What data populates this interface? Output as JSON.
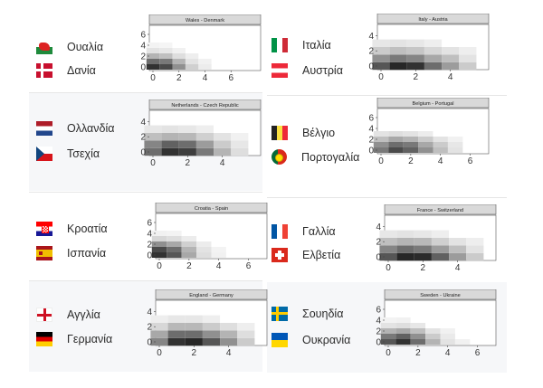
{
  "cards": [
    {
      "id": "wales-denmark",
      "home": {
        "name": "Ουαλία",
        "flag": "wales"
      },
      "away": {
        "name": "Δανία",
        "flag": "denmark"
      }
    },
    {
      "id": "italy-austria",
      "home": {
        "name": "Ιταλία",
        "flag": "italy"
      },
      "away": {
        "name": "Αυστρία",
        "flag": "austria"
      }
    },
    {
      "id": "netherlands-czech",
      "home": {
        "name": "Ολλανδία",
        "flag": "netherlands"
      },
      "away": {
        "name": "Τσεχία",
        "flag": "czech"
      }
    },
    {
      "id": "belgium-portugal",
      "home": {
        "name": "Βέλγιο",
        "flag": "belgium"
      },
      "away": {
        "name": "Πορτογαλία",
        "flag": "portugal"
      }
    },
    {
      "id": "croatia-spain",
      "home": {
        "name": "Κροατία",
        "flag": "croatia"
      },
      "away": {
        "name": "Ισπανία",
        "flag": "spain"
      }
    },
    {
      "id": "france-switzerland",
      "home": {
        "name": "Γαλλία",
        "flag": "france"
      },
      "away": {
        "name": "Ελβετία",
        "flag": "switzerland"
      }
    },
    {
      "id": "england-germany",
      "home": {
        "name": "Αγγλία",
        "flag": "england"
      },
      "away": {
        "name": "Γερμανία",
        "flag": "germany"
      }
    },
    {
      "id": "sweden-ukraine",
      "home": {
        "name": "Σουηδία",
        "flag": "sweden"
      },
      "away": {
        "name": "Ουκρανία",
        "flag": "ukraine"
      }
    }
  ],
  "chart_data": [
    {
      "type": "heatmap",
      "title": "Wales - Denmark",
      "xticks": [
        0,
        2,
        4,
        6
      ],
      "yticks": [
        0,
        2,
        4,
        6
      ],
      "xlim": [
        0,
        8
      ],
      "ylim": [
        0,
        7
      ],
      "cells": [
        [
          0.85,
          0.75,
          0.45,
          0.18,
          0.06
        ],
        [
          0.6,
          0.55,
          0.3,
          0.1,
          0.04
        ],
        [
          0.3,
          0.25,
          0.12,
          0.05
        ],
        [
          0.1,
          0.08,
          0.04
        ],
        [
          0.03,
          0.02
        ]
      ]
    },
    {
      "type": "heatmap",
      "title": "Italy - Austria",
      "xticks": [
        0,
        2,
        4
      ],
      "yticks": [
        0,
        2,
        4
      ],
      "xlim": [
        0,
        6
      ],
      "ylim": [
        0,
        5
      ],
      "cells": [
        [
          0.7,
          0.9,
          0.85,
          0.6,
          0.4,
          0.2
        ],
        [
          0.45,
          0.55,
          0.5,
          0.35,
          0.25,
          0.1
        ],
        [
          0.2,
          0.25,
          0.22,
          0.15,
          0.1,
          0.05
        ],
        [
          0.08,
          0.1,
          0.08,
          0.05
        ]
      ]
    },
    {
      "type": "heatmap",
      "title": "Netherlands - Czech Republic",
      "xticks": [
        0,
        2,
        4
      ],
      "yticks": [
        0,
        2,
        4
      ],
      "xlim": [
        0,
        6
      ],
      "ylim": [
        0,
        5
      ],
      "cells": [
        [
          0.6,
          0.85,
          0.8,
          0.55,
          0.3,
          0.12
        ],
        [
          0.5,
          0.65,
          0.6,
          0.4,
          0.2,
          0.08
        ],
        [
          0.25,
          0.3,
          0.28,
          0.18,
          0.1,
          0.04
        ],
        [
          0.08,
          0.1,
          0.08,
          0.05
        ]
      ]
    },
    {
      "type": "heatmap",
      "title": "Belgium - Portugal",
      "xticks": [
        0,
        2,
        4,
        6
      ],
      "yticks": [
        0,
        2,
        4,
        6
      ],
      "xlim": [
        0,
        7
      ],
      "ylim": [
        0,
        7
      ],
      "cells": [
        [
          0.55,
          0.75,
          0.65,
          0.45,
          0.25,
          0.1
        ],
        [
          0.45,
          0.6,
          0.55,
          0.35,
          0.2,
          0.08
        ],
        [
          0.25,
          0.35,
          0.3,
          0.2,
          0.1,
          0.04
        ],
        [
          0.1,
          0.12,
          0.1,
          0.06
        ]
      ]
    },
    {
      "type": "heatmap",
      "title": "Croatia - Spain",
      "xticks": [
        0,
        2,
        4,
        6
      ],
      "yticks": [
        0,
        2,
        4,
        6
      ],
      "xlim": [
        0,
        7
      ],
      "ylim": [
        0,
        7
      ],
      "cells": [
        [
          0.85,
          0.7,
          0.35,
          0.12,
          0.04
        ],
        [
          0.75,
          0.6,
          0.3,
          0.1,
          0.03
        ],
        [
          0.45,
          0.35,
          0.18,
          0.06
        ],
        [
          0.15,
          0.12,
          0.06
        ],
        [
          0.04,
          0.03
        ]
      ]
    },
    {
      "type": "heatmap",
      "title": "France - Switzerland",
      "xticks": [
        0,
        2,
        4
      ],
      "yticks": [
        0,
        2,
        4
      ],
      "xlim": [
        0,
        6
      ],
      "ylim": [
        0,
        5
      ],
      "cells": [
        [
          0.7,
          0.9,
          0.88,
          0.65,
          0.4,
          0.2
        ],
        [
          0.5,
          0.6,
          0.55,
          0.4,
          0.25,
          0.1
        ],
        [
          0.25,
          0.3,
          0.28,
          0.18,
          0.1,
          0.05
        ],
        [
          0.08,
          0.1,
          0.08,
          0.05
        ]
      ]
    },
    {
      "type": "heatmap",
      "title": "England - Germany",
      "xticks": [
        0,
        2,
        4
      ],
      "yticks": [
        0,
        2,
        4
      ],
      "xlim": [
        0,
        6
      ],
      "ylim": [
        0,
        5
      ],
      "cells": [
        [
          0.5,
          0.85,
          0.9,
          0.7,
          0.45,
          0.2
        ],
        [
          0.35,
          0.6,
          0.6,
          0.45,
          0.3,
          0.12
        ],
        [
          0.15,
          0.28,
          0.28,
          0.2,
          0.12,
          0.05
        ],
        [
          0.05,
          0.08,
          0.08,
          0.05
        ]
      ]
    },
    {
      "type": "heatmap",
      "title": "Sweden - Ukraine",
      "xticks": [
        0,
        2,
        4,
        6
      ],
      "yticks": [
        0,
        2,
        4,
        6
      ],
      "xlim": [
        0,
        7
      ],
      "ylim": [
        0,
        7
      ],
      "cells": [
        [
          0.7,
          0.85,
          0.6,
          0.3,
          0.1,
          0.04
        ],
        [
          0.55,
          0.65,
          0.45,
          0.2,
          0.07
        ],
        [
          0.3,
          0.35,
          0.25,
          0.1,
          0.04
        ],
        [
          0.1,
          0.12,
          0.08
        ],
        [
          0.03,
          0.04
        ]
      ]
    }
  ]
}
